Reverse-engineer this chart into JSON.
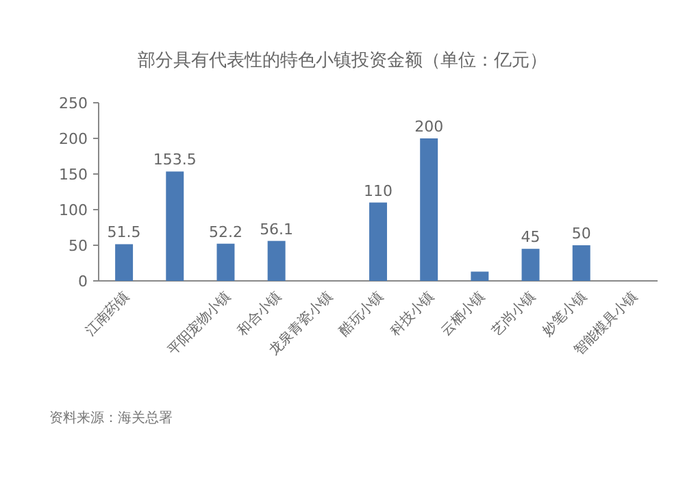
{
  "chart_data": {
    "type": "bar",
    "title": "部分具有代表性的特色小镇投资金额（单位：亿元）",
    "categories": [
      "江南药镇",
      null,
      "平阳宠物小镇",
      "和合小镇",
      "龙泉青瓷小镇",
      "酷玩小镇",
      "科技小镇",
      "云栖小镇",
      "艺尚小镇",
      "妙笔小镇",
      "智能模具小镇"
    ],
    "values": [
      51.5,
      153.5,
      52.2,
      56.1,
      null,
      110,
      200,
      13,
      45,
      50,
      null
    ],
    "value_labels": [
      "51.5",
      "153.5",
      "52.2",
      "56.1",
      null,
      "110",
      "200",
      null,
      "45",
      "50",
      null
    ],
    "color": "#4a7ab5",
    "ylim": [
      0,
      250
    ],
    "yticks": [
      0,
      50,
      100,
      150,
      200,
      250
    ],
    "annotations": [
      "资料来源：海关总署"
    ]
  }
}
